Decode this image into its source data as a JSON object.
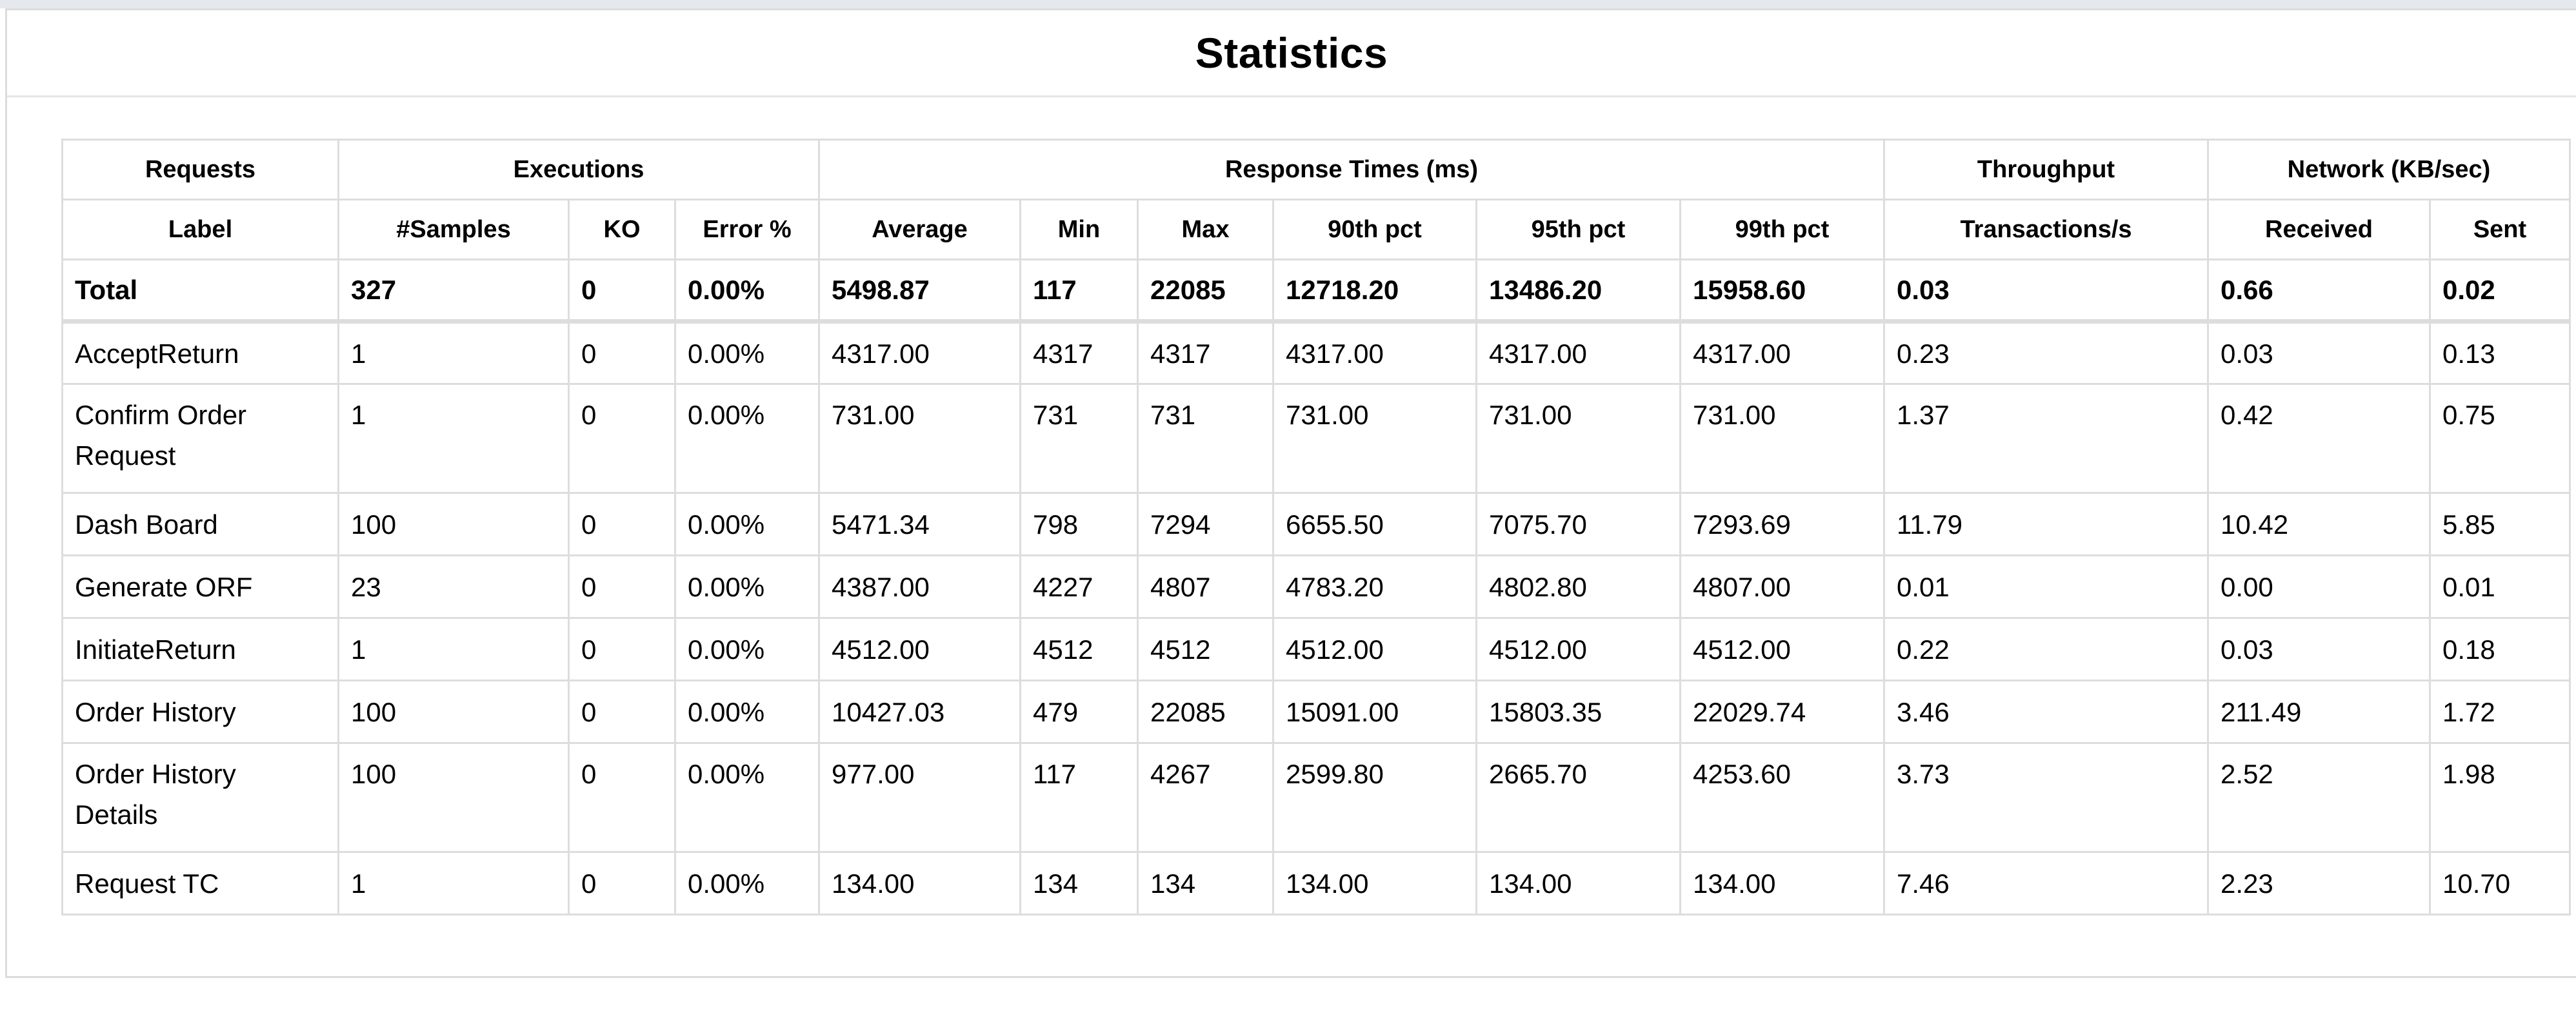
{
  "page": {
    "title": "Statistics"
  },
  "group_headers": [
    {
      "label": "Requests",
      "span": 1
    },
    {
      "label": "Executions",
      "span": 3
    },
    {
      "label": "Response Times (ms)",
      "span": 6
    },
    {
      "label": "Throughput",
      "span": 1
    },
    {
      "label": "Network (KB/sec)",
      "span": 2
    }
  ],
  "columns": [
    "Label",
    "#Samples",
    "KO",
    "Error %",
    "Average",
    "Min",
    "Max",
    "90th pct",
    "95th pct",
    "99th pct",
    "Transactions/s",
    "Received",
    "Sent"
  ],
  "total": [
    "Total",
    "327",
    "0",
    "0.00%",
    "5498.87",
    "117",
    "22085",
    "12718.20",
    "13486.20",
    "15958.60",
    "0.03",
    "0.66",
    "0.02"
  ],
  "rows": [
    [
      "AcceptReturn",
      "1",
      "0",
      "0.00%",
      "4317.00",
      "4317",
      "4317",
      "4317.00",
      "4317.00",
      "4317.00",
      "0.23",
      "0.03",
      "0.13"
    ],
    [
      "Confirm Order Request",
      "1",
      "0",
      "0.00%",
      "731.00",
      "731",
      "731",
      "731.00",
      "731.00",
      "731.00",
      "1.37",
      "0.42",
      "0.75"
    ],
    [
      "Dash Board",
      "100",
      "0",
      "0.00%",
      "5471.34",
      "798",
      "7294",
      "6655.50",
      "7075.70",
      "7293.69",
      "11.79",
      "10.42",
      "5.85"
    ],
    [
      "Generate ORF",
      "23",
      "0",
      "0.00%",
      "4387.00",
      "4227",
      "4807",
      "4783.20",
      "4802.80",
      "4807.00",
      "0.01",
      "0.00",
      "0.01"
    ],
    [
      "InitiateReturn",
      "1",
      "0",
      "0.00%",
      "4512.00",
      "4512",
      "4512",
      "4512.00",
      "4512.00",
      "4512.00",
      "0.22",
      "0.03",
      "0.18"
    ],
    [
      "Order History",
      "100",
      "0",
      "0.00%",
      "10427.03",
      "479",
      "22085",
      "15091.00",
      "15803.35",
      "22029.74",
      "3.46",
      "211.49",
      "1.72"
    ],
    [
      "Order History Details",
      "100",
      "0",
      "0.00%",
      "977.00",
      "117",
      "4267",
      "2599.80",
      "2665.70",
      "4253.60",
      "3.73",
      "2.52",
      "1.98"
    ],
    [
      "Request TC",
      "1",
      "0",
      "0.00%",
      "134.00",
      "134",
      "134",
      "134.00",
      "134.00",
      "134.00",
      "7.46",
      "2.23",
      "10.70"
    ]
  ]
}
